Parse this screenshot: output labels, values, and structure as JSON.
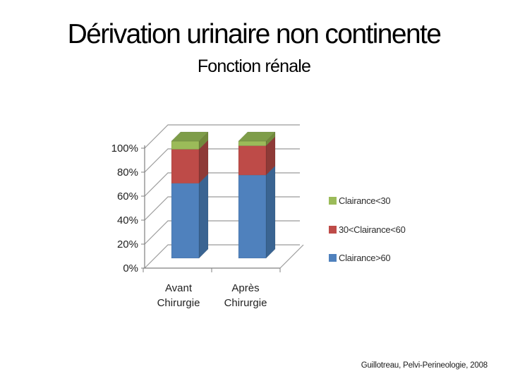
{
  "slide": {
    "title": "Dérivation urinaire non continente",
    "subtitle": "Fonction rénale",
    "citation": "Guillotreau, Pelvi-Perineologie, 2008"
  },
  "chart_data": {
    "type": "bar",
    "variant": "3d-stacked-percent",
    "title": "",
    "xlabel": "",
    "ylabel": "",
    "ylim": [
      0,
      100
    ],
    "grid": true,
    "legend_position": "right",
    "y_ticks": [
      "0%",
      "20%",
      "40%",
      "60%",
      "80%",
      "100%"
    ],
    "categories": [
      [
        "Avant",
        "Chirurgie"
      ],
      [
        "Après",
        "Chirurgie"
      ]
    ],
    "series": [
      {
        "name": "Clairance>60",
        "color": "#4f81bd",
        "side_color": "#3a6492",
        "top_color": "#6b94c9",
        "values": [
          64,
          71
        ]
      },
      {
        "name": "30<Clairance<60",
        "color": "#be4b48",
        "side_color": "#8e3a37",
        "top_color": "#cb6965",
        "values": [
          29,
          25
        ]
      },
      {
        "name": "Clairance<30",
        "color": "#9bbb59",
        "side_color": "#71893b",
        "top_color": "#7e9d49",
        "values": [
          7,
          4
        ]
      }
    ],
    "legend_order_top_to_bottom": [
      "Clairance<30",
      "30<Clairance<60",
      "Clairance>60"
    ]
  }
}
